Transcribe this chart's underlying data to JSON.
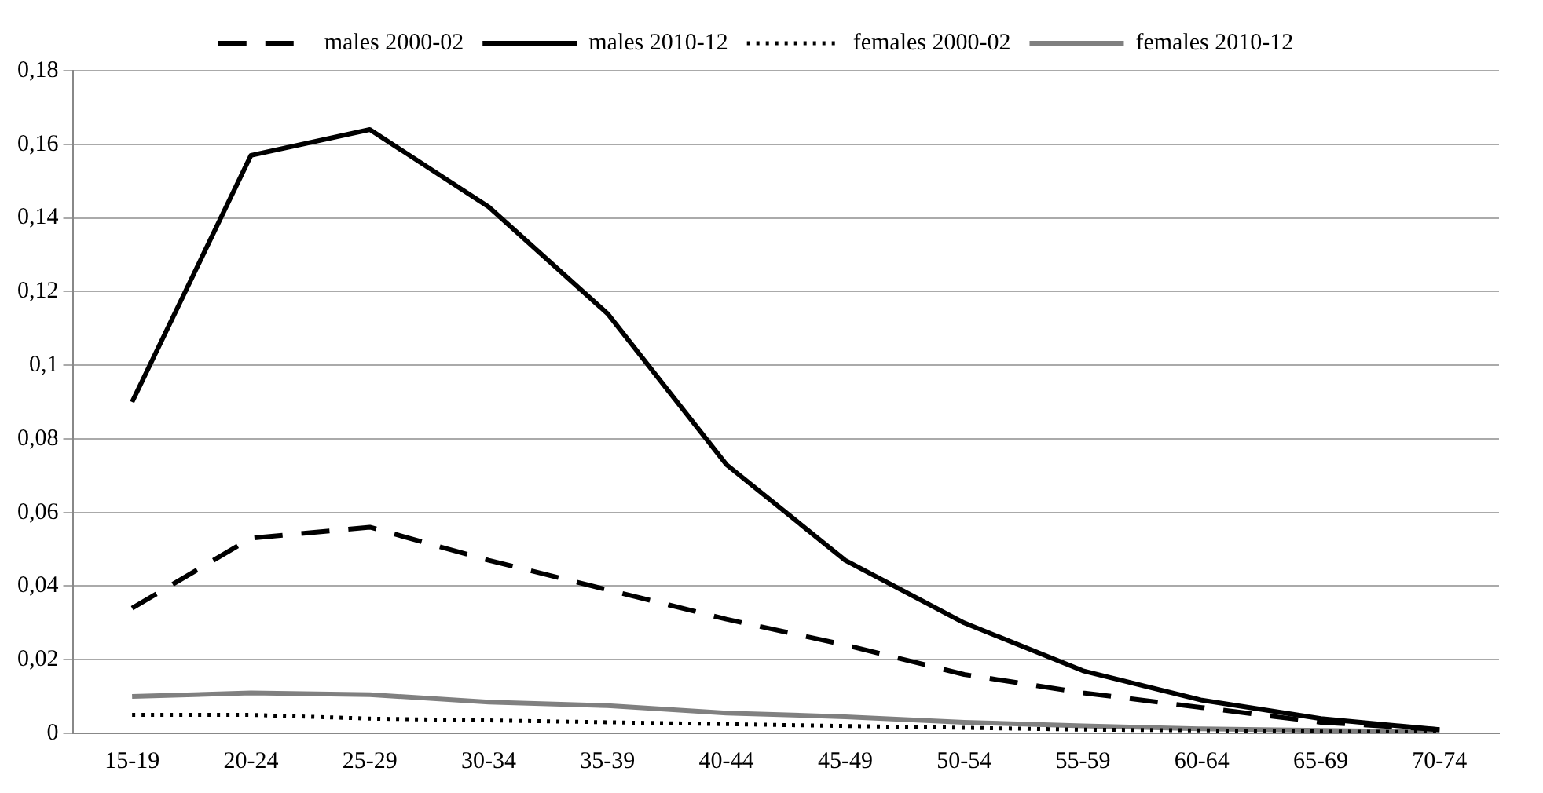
{
  "chart_data": {
    "type": "line",
    "categories": [
      "15-19",
      "20-24",
      "25-29",
      "30-34",
      "35-39",
      "40-44",
      "45-49",
      "50-54",
      "55-59",
      "60-64",
      "65-69",
      "70-74"
    ],
    "series": [
      {
        "name": "males 2000-02",
        "color": "#000000",
        "line_style": "dashed",
        "values": [
          0.034,
          0.053,
          0.056,
          0.047,
          0.039,
          0.031,
          0.024,
          0.016,
          0.011,
          0.007,
          0.003,
          0.001
        ]
      },
      {
        "name": "males 2010-12",
        "color": "#000000",
        "line_style": "solid",
        "values": [
          0.09,
          0.157,
          0.164,
          0.143,
          0.114,
          0.073,
          0.047,
          0.03,
          0.017,
          0.009,
          0.004,
          0.001
        ]
      },
      {
        "name": "females 2000-02",
        "color": "#000000",
        "line_style": "dotted",
        "values": [
          0.005,
          0.005,
          0.004,
          0.0035,
          0.003,
          0.0025,
          0.002,
          0.0015,
          0.001,
          0.0008,
          0.0005,
          0.0003
        ]
      },
      {
        "name": "females 2010-12",
        "color": "#808080",
        "line_style": "solid",
        "values": [
          0.01,
          0.011,
          0.0105,
          0.0085,
          0.0075,
          0.0055,
          0.0045,
          0.003,
          0.002,
          0.0012,
          0.0008,
          0.0004
        ]
      }
    ],
    "ylim": [
      0,
      0.18
    ],
    "yticks": [
      0,
      {
        "value": 0.02,
        "label": "0,02"
      },
      {
        "value": 0.04,
        "label": "0,04"
      },
      {
        "value": 0.06,
        "label": "0,06"
      },
      {
        "value": 0.08,
        "label": "0,08"
      },
      {
        "value": 0.1,
        "label": "0,1"
      },
      {
        "value": 0.12,
        "label": "0,12"
      },
      {
        "value": 0.14,
        "label": "0,14"
      },
      {
        "value": 0.16,
        "label": "0,16"
      },
      {
        "value": 0.18,
        "label": "0,18"
      }
    ],
    "grid": "y",
    "legend": "top",
    "marker": "none"
  }
}
